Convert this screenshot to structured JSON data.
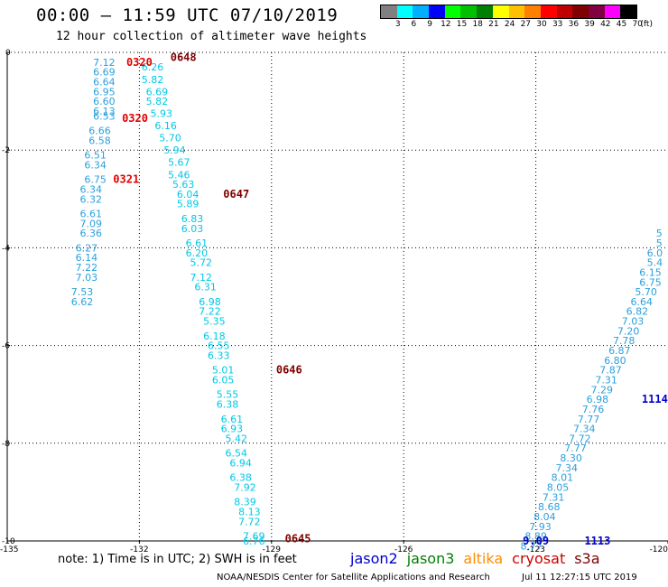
{
  "header": {
    "title": "00:00 — 11:59 UTC 07/10/2019",
    "subtitle": "12 hour collection of altimeter wave heights"
  },
  "legend": {
    "colors": [
      "#808080",
      "#00ffff",
      "#00b0ff",
      "#0000ff",
      "#00ff00",
      "#00c000",
      "#008000",
      "#ffff00",
      "#ffc000",
      "#ff8000",
      "#ff0000",
      "#c00000",
      "#800000",
      "#800040",
      "#ff00ff",
      "#000000"
    ],
    "labels": [
      "3",
      "6",
      "9",
      "12",
      "15",
      "18",
      "21",
      "24",
      "27",
      "30",
      "33",
      "36",
      "39",
      "42",
      "45",
      "70",
      "(ft)"
    ]
  },
  "footer": {
    "note": "note: 1) Time is in UTC; 2) SWH is in feet",
    "satellites": [
      {
        "name": "jason2",
        "color": "#0000cc"
      },
      {
        "name": "jason3",
        "color": "#008000"
      },
      {
        "name": "altika",
        "color": "#ff8c00"
      },
      {
        "name": "cryosat",
        "color": "#cc0000"
      },
      {
        "name": "s3a",
        "color": "#800000"
      }
    ],
    "credit": "NOAA/NESDIS Center for Satellite Applications and Research",
    "timestamp": "Jul 11 12:27:15 UTC 2019"
  },
  "chart_data": {
    "type": "scatter",
    "xlim": [
      -135,
      -120
    ],
    "ylim": [
      -10,
      0
    ],
    "x_ticks": [
      "-135",
      "-132",
      "-129",
      "-126",
      "-123",
      "-120"
    ],
    "y_ticks": [
      "0",
      "-2",
      "-4",
      "-6",
      "-8",
      "-10"
    ],
    "grid": true,
    "series": [
      {
        "name": "jason3",
        "color": "#2aa0dc",
        "points": [
          {
            "x": -132.8,
            "y": -0.2,
            "v": "7.12"
          },
          {
            "x": -132.8,
            "y": -0.4,
            "v": "6.69"
          },
          {
            "x": -132.8,
            "y": -0.6,
            "v": "6.64"
          },
          {
            "x": -132.8,
            "y": -0.8,
            "v": "6.95"
          },
          {
            "x": -132.8,
            "y": -1.0,
            "v": "6.60"
          },
          {
            "x": -132.8,
            "y": -1.2,
            "v": "6.13"
          },
          {
            "x": -132.8,
            "y": -1.3,
            "v": "6.53"
          },
          {
            "x": -132.9,
            "y": -1.6,
            "v": "6.66"
          },
          {
            "x": -132.9,
            "y": -1.8,
            "v": "6.58"
          },
          {
            "x": -133.0,
            "y": -2.1,
            "v": "6.51"
          },
          {
            "x": -133.0,
            "y": -2.3,
            "v": "6.34"
          },
          {
            "x": -133.0,
            "y": -2.6,
            "v": "6.75"
          },
          {
            "x": -133.1,
            "y": -2.8,
            "v": "6.34"
          },
          {
            "x": -133.1,
            "y": -3.0,
            "v": "6.32"
          },
          {
            "x": -133.1,
            "y": -3.3,
            "v": "6.61"
          },
          {
            "x": -133.1,
            "y": -3.5,
            "v": "7.09"
          },
          {
            "x": -133.1,
            "y": -3.7,
            "v": "6.36"
          },
          {
            "x": -133.2,
            "y": -4.0,
            "v": "6.27"
          },
          {
            "x": -133.2,
            "y": -4.2,
            "v": "6.14"
          },
          {
            "x": -133.2,
            "y": -4.4,
            "v": "7.22"
          },
          {
            "x": -133.2,
            "y": -4.6,
            "v": "7.03"
          },
          {
            "x": -133.3,
            "y": -4.9,
            "v": "7.53"
          },
          {
            "x": -133.3,
            "y": -5.1,
            "v": "6.62"
          },
          {
            "x": -120.2,
            "y": -3.7,
            "v": "5"
          },
          {
            "x": -120.2,
            "y": -3.9,
            "v": "5"
          },
          {
            "x": -120.3,
            "y": -4.1,
            "v": "6.0"
          },
          {
            "x": -120.3,
            "y": -4.3,
            "v": "5.4"
          },
          {
            "x": -120.4,
            "y": -4.5,
            "v": "6.15"
          },
          {
            "x": -120.4,
            "y": -4.7,
            "v": "6.75"
          },
          {
            "x": -120.5,
            "y": -4.9,
            "v": "5.70"
          },
          {
            "x": -120.6,
            "y": -5.1,
            "v": "6.64"
          },
          {
            "x": -120.7,
            "y": -5.3,
            "v": "6.82"
          },
          {
            "x": -120.8,
            "y": -5.5,
            "v": "7.03"
          },
          {
            "x": -120.9,
            "y": -5.7,
            "v": "7.20"
          },
          {
            "x": -121.0,
            "y": -5.9,
            "v": "7.78"
          },
          {
            "x": -121.1,
            "y": -6.1,
            "v": "6.87"
          },
          {
            "x": -121.2,
            "y": -6.3,
            "v": "6.80"
          },
          {
            "x": -121.3,
            "y": -6.5,
            "v": "7.87"
          },
          {
            "x": -121.4,
            "y": -6.7,
            "v": "7.31"
          },
          {
            "x": -121.5,
            "y": -6.9,
            "v": "7.29"
          },
          {
            "x": -121.6,
            "y": -7.1,
            "v": "6.98"
          },
          {
            "x": -121.7,
            "y": -7.3,
            "v": "7.76"
          },
          {
            "x": -121.8,
            "y": -7.5,
            "v": "7.77"
          },
          {
            "x": -121.9,
            "y": -7.7,
            "v": "7.34"
          },
          {
            "x": -122.0,
            "y": -7.9,
            "v": "7.72"
          },
          {
            "x": -122.1,
            "y": -8.1,
            "v": "7.77"
          },
          {
            "x": -122.2,
            "y": -8.3,
            "v": "8.30"
          },
          {
            "x": -122.3,
            "y": -8.5,
            "v": "7.34"
          },
          {
            "x": -122.4,
            "y": -8.7,
            "v": "8.01"
          },
          {
            "x": -122.5,
            "y": -8.9,
            "v": "8.05"
          },
          {
            "x": -122.6,
            "y": -9.1,
            "v": "7.31"
          },
          {
            "x": -122.7,
            "y": -9.3,
            "v": "8.68"
          },
          {
            "x": -122.8,
            "y": -9.5,
            "v": "8.04"
          },
          {
            "x": -122.9,
            "y": -9.7,
            "v": "7.93"
          },
          {
            "x": -123.0,
            "y": -9.9,
            "v": "8.89"
          },
          {
            "x": -123.1,
            "y": -10.1,
            "v": "8.77"
          }
        ]
      },
      {
        "name": "s3a",
        "color": "#00c8e6",
        "points": [
          {
            "x": -131.7,
            "y": -0.3,
            "v": "6.26"
          },
          {
            "x": -131.7,
            "y": -0.55,
            "v": "5.82"
          },
          {
            "x": -131.6,
            "y": -0.8,
            "v": "6.69"
          },
          {
            "x": -131.6,
            "y": -1.0,
            "v": "5.82"
          },
          {
            "x": -131.5,
            "y": -1.25,
            "v": "5.93"
          },
          {
            "x": -131.4,
            "y": -1.5,
            "v": "6.16"
          },
          {
            "x": -131.3,
            "y": -1.75,
            "v": "5.70"
          },
          {
            "x": -131.2,
            "y": -2.0,
            "v": "5.94"
          },
          {
            "x": -131.1,
            "y": -2.25,
            "v": "5.67"
          },
          {
            "x": -131.1,
            "y": -2.5,
            "v": "5.46"
          },
          {
            "x": -131.0,
            "y": -2.7,
            "v": "5.63"
          },
          {
            "x": -130.9,
            "y": -2.9,
            "v": "6.04"
          },
          {
            "x": -130.9,
            "y": -3.1,
            "v": "5.89"
          },
          {
            "x": -130.8,
            "y": -3.4,
            "v": "6.83"
          },
          {
            "x": -130.8,
            "y": -3.6,
            "v": "6.03"
          },
          {
            "x": -130.7,
            "y": -3.9,
            "v": "6.61"
          },
          {
            "x": -130.7,
            "y": -4.1,
            "v": "6.20"
          },
          {
            "x": -130.6,
            "y": -4.3,
            "v": "5.72"
          },
          {
            "x": -130.6,
            "y": -4.6,
            "v": "7.12"
          },
          {
            "x": -130.5,
            "y": -4.8,
            "v": "6.31"
          },
          {
            "x": -130.4,
            "y": -5.1,
            "v": "6.98"
          },
          {
            "x": -130.4,
            "y": -5.3,
            "v": "7.22"
          },
          {
            "x": -130.3,
            "y": -5.5,
            "v": "5.35"
          },
          {
            "x": -130.3,
            "y": -5.8,
            "v": "6.18"
          },
          {
            "x": -130.2,
            "y": -6.0,
            "v": "6.55"
          },
          {
            "x": -130.2,
            "y": -6.2,
            "v": "6.33"
          },
          {
            "x": -130.1,
            "y": -6.5,
            "v": "5.01"
          },
          {
            "x": -130.1,
            "y": -6.7,
            "v": "6.05"
          },
          {
            "x": -130.0,
            "y": -7.0,
            "v": "5.55"
          },
          {
            "x": -130.0,
            "y": -7.2,
            "v": "6.38"
          },
          {
            "x": -129.9,
            "y": -7.5,
            "v": "6.61"
          },
          {
            "x": -129.9,
            "y": -7.7,
            "v": "6.93"
          },
          {
            "x": -129.8,
            "y": -7.9,
            "v": "5.42"
          },
          {
            "x": -129.8,
            "y": -8.2,
            "v": "6.54"
          },
          {
            "x": -129.7,
            "y": -8.4,
            "v": "6.94"
          },
          {
            "x": -129.7,
            "y": -8.7,
            "v": "6.38"
          },
          {
            "x": -129.6,
            "y": -8.9,
            "v": "7.92"
          },
          {
            "x": -129.6,
            "y": -9.2,
            "v": "8.39"
          },
          {
            "x": -129.5,
            "y": -9.4,
            "v": "8.13"
          },
          {
            "x": -129.5,
            "y": -9.6,
            "v": "7.72"
          },
          {
            "x": -129.4,
            "y": -9.9,
            "v": "7.69"
          },
          {
            "x": -129.4,
            "y": -10.0,
            "v": "6.76"
          }
        ]
      }
    ],
    "annotations": [
      {
        "x": -132.0,
        "y": -0.2,
        "text": "0320",
        "color": "#e00000"
      },
      {
        "x": -131.0,
        "y": -0.1,
        "text": "0648",
        "color": "#800000"
      },
      {
        "x": -132.1,
        "y": -1.35,
        "text": "0320",
        "color": "#e00000"
      },
      {
        "x": -132.3,
        "y": -2.6,
        "text": "0321",
        "color": "#e00000"
      },
      {
        "x": -129.8,
        "y": -2.9,
        "text": "0647",
        "color": "#800000"
      },
      {
        "x": -128.6,
        "y": -6.5,
        "text": "0646",
        "color": "#800000"
      },
      {
        "x": -128.4,
        "y": -9.95,
        "text": "0645",
        "color": "#800000"
      },
      {
        "x": -120.3,
        "y": -7.1,
        "text": "1114",
        "color": "#0000cc"
      },
      {
        "x": -121.6,
        "y": -10.0,
        "text": "1113",
        "color": "#0000cc"
      },
      {
        "x": -123.0,
        "y": -10.0,
        "text": "9.09",
        "color": "#0000cc"
      }
    ]
  }
}
